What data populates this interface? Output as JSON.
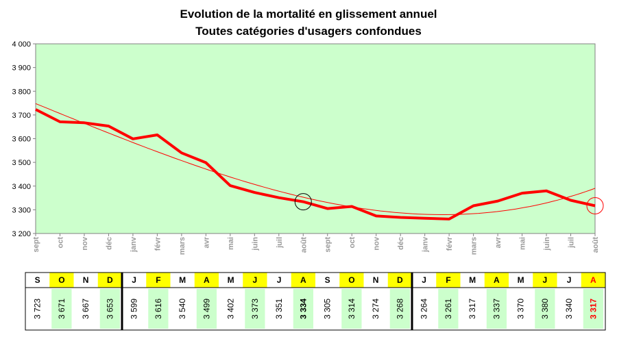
{
  "chart_data": {
    "type": "line",
    "title": "Evolution de la mortalité en glissement annuel",
    "subtitle": "Toutes catégories d'usagers confondues",
    "x": [
      "sept",
      "oct",
      "nov",
      "déc",
      "janv",
      "févr",
      "mars",
      "avr",
      "mai",
      "juin",
      "juil",
      "août",
      "sept",
      "oct",
      "nov",
      "déc",
      "janv",
      "févr",
      "mars",
      "avr",
      "mai",
      "juin",
      "juil",
      "août"
    ],
    "series": [
      {
        "values": [
          3723,
          3671,
          3667,
          3653,
          3599,
          3616,
          3540,
          3499,
          3402,
          3373,
          3351,
          3334,
          3305,
          3314,
          3274,
          3268,
          3264,
          3261,
          3317,
          3337,
          3370,
          3380,
          3340,
          3317
        ]
      }
    ],
    "trend": "polynomial",
    "ylim": [
      3200,
      4000
    ],
    "yticks": [
      "3 200",
      "3 300",
      "3 400",
      "3 500",
      "3 600",
      "3 700",
      "3 800",
      "3 900",
      "4 000"
    ],
    "grid": false,
    "highlight_indices": [
      11,
      23
    ],
    "colors": {
      "line": "#ff0000",
      "plot_bg": "#ccffcc",
      "trend": "#ff0000"
    }
  },
  "table": {
    "months": [
      "S",
      "O",
      "N",
      "D",
      "J",
      "F",
      "M",
      "A",
      "M",
      "J",
      "J",
      "A",
      "S",
      "O",
      "N",
      "D",
      "J",
      "F",
      "M",
      "A",
      "M",
      "J",
      "J",
      "A"
    ],
    "values": [
      "3 723",
      "3 671",
      "3 667",
      "3 653",
      "3 599",
      "3 616",
      "3 540",
      "3 499",
      "3 402",
      "3 373",
      "3 351",
      "3 334",
      "3 305",
      "3 314",
      "3 274",
      "3 268",
      "3 264",
      "3 261",
      "3 317",
      "3 337",
      "3 370",
      "3 380",
      "3 340",
      "3 317"
    ],
    "colors": {
      "yellow": "#ffff00",
      "green": "#ccffcc",
      "last_value": "#ff0000"
    }
  }
}
